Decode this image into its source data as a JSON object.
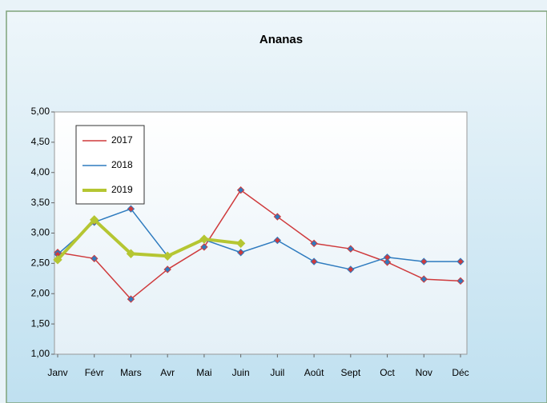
{
  "chart_data": {
    "type": "line",
    "title": "Ananas",
    "categories": [
      "Janv",
      "Févr",
      "Mars",
      "Avr",
      "Mai",
      "Juin",
      "Juil",
      "Août",
      "Sept",
      "Oct",
      "Nov",
      "Déc"
    ],
    "series": [
      {
        "name": "2017",
        "color": "#cf3a3c",
        "values": [
          2.68,
          2.58,
          1.91,
          2.4,
          2.77,
          3.71,
          3.27,
          2.83,
          2.74,
          2.52,
          2.24,
          2.21
        ]
      },
      {
        "name": "2018",
        "color": "#2e7bbf",
        "values": [
          2.65,
          3.18,
          3.4,
          2.62,
          2.89,
          2.68,
          2.88,
          2.53,
          2.4,
          2.6,
          2.53,
          2.53
        ]
      },
      {
        "name": "2019",
        "color": "#b5c632",
        "values": [
          2.56,
          3.22,
          2.66,
          2.62,
          2.9,
          2.83,
          null,
          null,
          null,
          null,
          null,
          null
        ]
      }
    ],
    "ylim": [
      1,
      5
    ],
    "yticks": [
      {
        "value": 1,
        "label": "1,00"
      },
      {
        "value": 1.5,
        "label": "1,50"
      },
      {
        "value": 2,
        "label": "2,00"
      },
      {
        "value": 2.5,
        "label": "2,50"
      },
      {
        "value": 3,
        "label": "3,00"
      },
      {
        "value": 3.5,
        "label": "3,50"
      },
      {
        "value": 4,
        "label": "4,00"
      },
      {
        "value": 4.5,
        "label": "4,50"
      },
      {
        "value": 5,
        "label": "5,00"
      }
    ],
    "grid": false,
    "legend": "upper left"
  }
}
